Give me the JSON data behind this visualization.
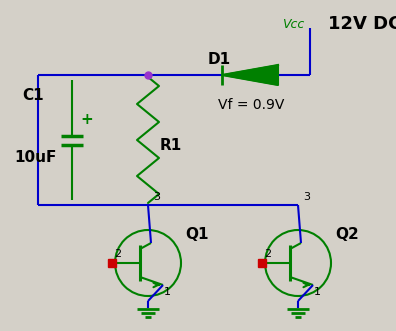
{
  "bg_color": "#d4d0c8",
  "wire_color": "#0000cc",
  "component_color": "#008000",
  "text_color_black": "#000000",
  "text_color_green": "#008000",
  "junction_color": "#9933cc",
  "red_dot_color": "#cc0000",
  "figsize": [
    3.96,
    3.31
  ],
  "dpi": 100,
  "title": "12V DC",
  "vcc_label": "Vcc",
  "d1_label": "D1",
  "vf_label": "Vf = 0.9V",
  "c1_label": "C1",
  "cap_label": "10uF",
  "r1_label": "R1",
  "q1_label": "Q1",
  "q2_label": "Q2",
  "plus_label": "+"
}
